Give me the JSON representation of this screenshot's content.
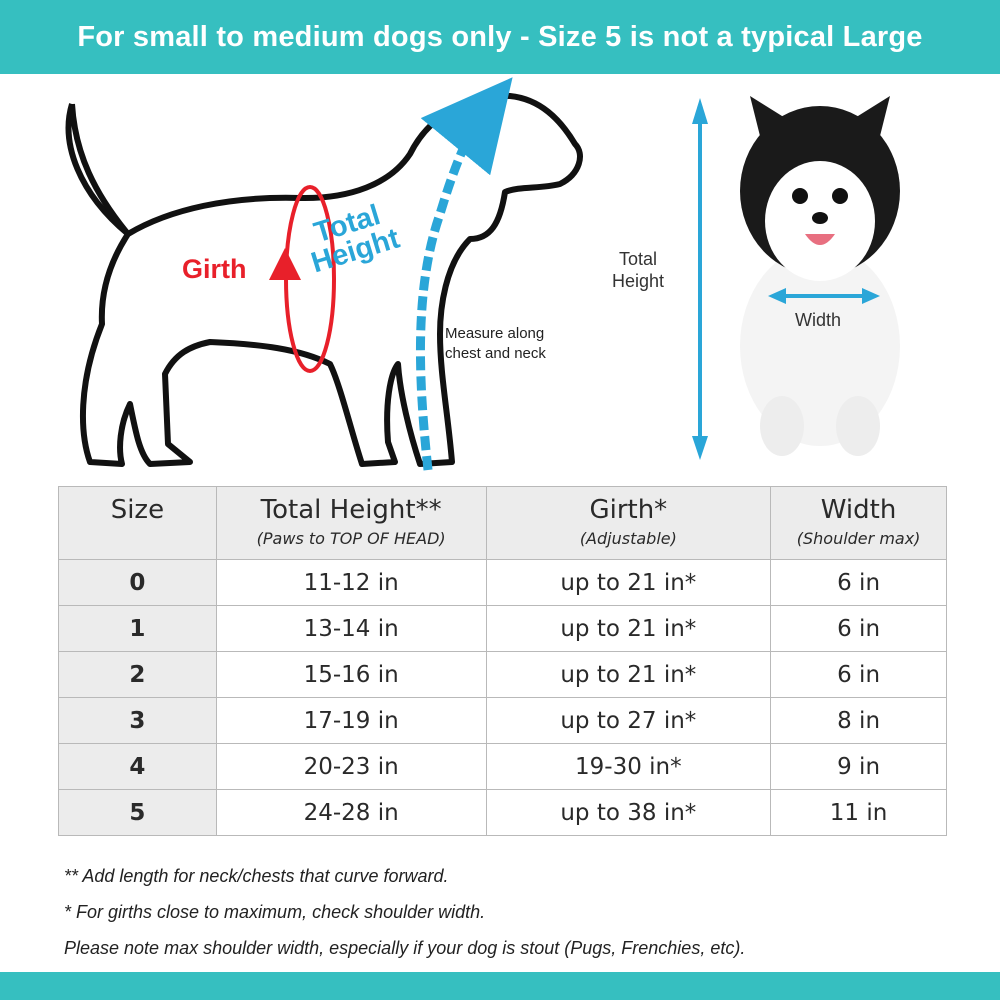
{
  "banner": {
    "title": "For small to medium dogs only - Size 5 is not a typical Large"
  },
  "diagram": {
    "girth_label": "Girth",
    "height_label_line1": "Total",
    "height_label_line2": "Height",
    "measure_note_line1": "Measure along",
    "measure_note_line2": "chest and neck",
    "photo_height_line1": "Total",
    "photo_height_line2": "Height",
    "width_label": "Width",
    "colors": {
      "girth": "#e8202a",
      "height": "#2aa6d8",
      "accent": "#36bfc0"
    }
  },
  "table": {
    "headers": [
      {
        "title": "Size",
        "sub": ""
      },
      {
        "title": "Total Height**",
        "sub": "(Paws to TOP OF HEAD)"
      },
      {
        "title": "Girth*",
        "sub": "(Adjustable)"
      },
      {
        "title": "Width",
        "sub": "(Shoulder max)"
      }
    ],
    "rows": [
      {
        "size": "0",
        "height": "11-12 in",
        "girth": "up to 21 in*",
        "width": "6 in"
      },
      {
        "size": "1",
        "height": "13-14 in",
        "girth": "up to 21 in*",
        "width": "6 in"
      },
      {
        "size": "2",
        "height": "15-16 in",
        "girth": "up to 21 in*",
        "width": "6 in"
      },
      {
        "size": "3",
        "height": "17-19 in",
        "girth": "up to 27 in*",
        "width": "8 in"
      },
      {
        "size": "4",
        "height": "20-23 in",
        "girth": "19-30 in*",
        "width": "9 in"
      },
      {
        "size": "5",
        "height": "24-28 in",
        "girth": "up to 38 in*",
        "width": "11 in"
      }
    ]
  },
  "notes": [
    "** Add length for neck/chests that curve forward.",
    "* For girths close to maximum, check shoulder width.",
    "Please note max shoulder width, especially if your dog is stout (Pugs, Frenchies, etc)."
  ]
}
